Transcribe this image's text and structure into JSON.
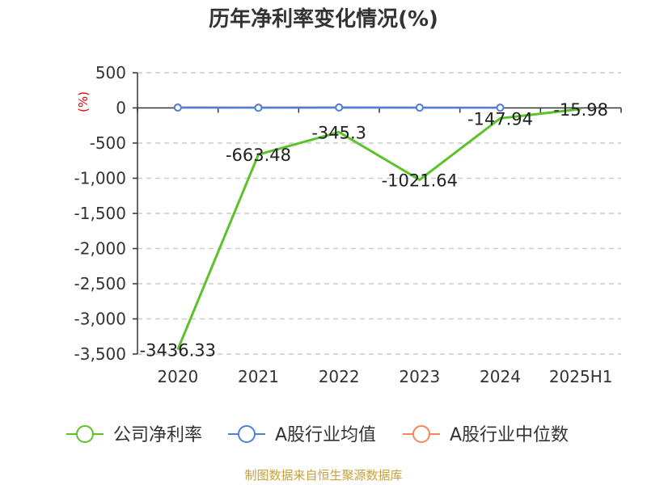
{
  "chart_data": {
    "type": "line",
    "title": "历年净利率变化情况(%)",
    "ylabel": "(%)",
    "categories": [
      "2020",
      "2021",
      "2022",
      "2023",
      "2024",
      "2025H1"
    ],
    "ylim": [
      -3500,
      500
    ],
    "yticks": [
      500,
      0,
      -500,
      -1000,
      -1500,
      -2000,
      -2500,
      -3000,
      -3500
    ],
    "ytick_labels": [
      "500",
      "0",
      "-500",
      "-1,000",
      "-1,500",
      "-2,000",
      "-2,500",
      "-3,000",
      "-3,500"
    ],
    "grid": true,
    "legend_position": "bottom",
    "series": [
      {
        "name": "公司净利率",
        "color": "#5cc22a",
        "values": [
          -3436.33,
          -663.48,
          -345.3,
          -1021.64,
          -147.94,
          -15.98
        ],
        "labels": [
          "-3436.33",
          "-663.48",
          "-345.3",
          "-1021.64",
          "-147.94",
          "-15.98"
        ],
        "markers": false
      },
      {
        "name": "A股行业均值",
        "color": "#4f7fd6",
        "values": [
          5,
          2,
          6,
          4,
          3,
          null
        ],
        "markers": true
      },
      {
        "name": "A股行业中位数",
        "color": "#f2885a",
        "values": [
          7,
          6,
          7,
          6,
          5,
          null
        ],
        "markers": true
      }
    ]
  },
  "footer": {
    "source": "制图数据来自恒生聚源数据库"
  }
}
